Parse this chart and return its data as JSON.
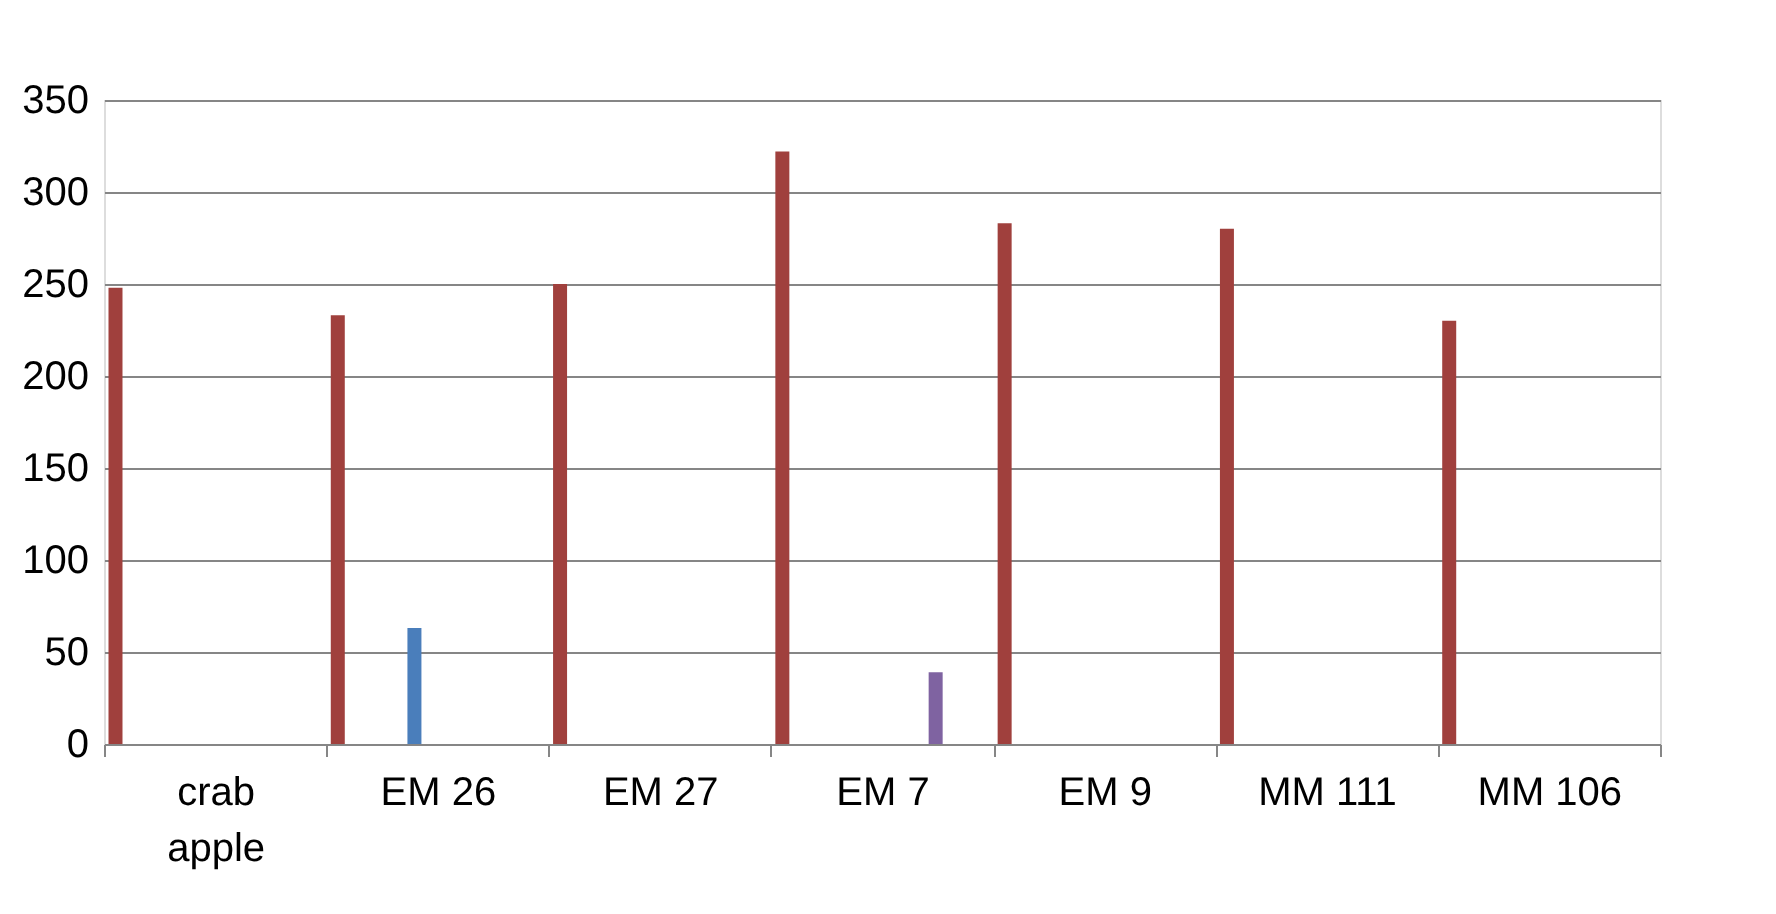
{
  "chart_data": {
    "type": "bar",
    "categories": [
      "crab apple",
      "EM 26",
      "EM 27",
      "EM 7",
      "EM 9",
      "MM 111",
      "MM 106"
    ],
    "series": [
      {
        "color": "#a0403d",
        "values": [
          248,
          233,
          250,
          322,
          283,
          280,
          230
        ]
      },
      {
        "color": "#4a7ebb",
        "values": [
          null,
          63,
          null,
          null,
          null,
          null,
          null
        ]
      },
      {
        "color": "#7f63a1",
        "values": [
          null,
          null,
          null,
          39,
          null,
          null,
          null
        ]
      }
    ],
    "ylim": [
      0,
      350
    ],
    "yticks": [
      0,
      50,
      100,
      150,
      200,
      250,
      300,
      350
    ],
    "grid": "y"
  }
}
